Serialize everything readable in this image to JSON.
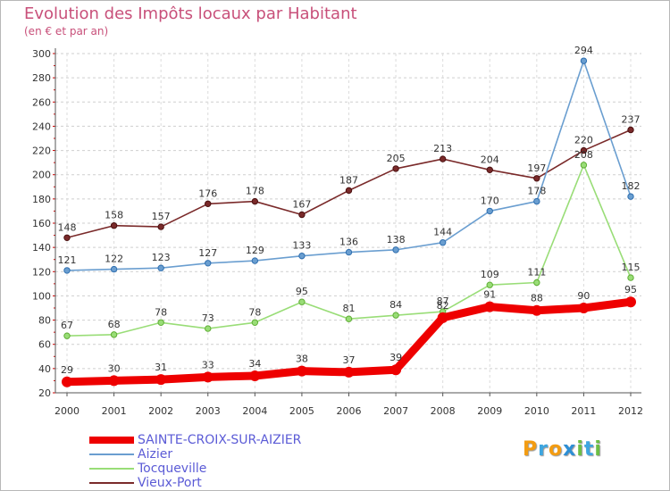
{
  "header": {
    "title": "Evolution des Impôts locaux par Habitant",
    "subtitle": "(en € et par an)"
  },
  "logo": {
    "text": "Proxiti",
    "colors": [
      "#f39c12",
      "#3ea6e0",
      "#f39c12",
      "#2d8fd5",
      "#6dbe45",
      "#3ea6e0",
      "#6dbe45"
    ]
  },
  "chart_data": {
    "type": "line",
    "x": [
      "2000",
      "2001",
      "2002",
      "2003",
      "2004",
      "2005",
      "2006",
      "2007",
      "2008",
      "2009",
      "2010",
      "2011",
      "2012"
    ],
    "ylim": [
      20,
      300
    ],
    "yticks": [
      20,
      40,
      60,
      80,
      100,
      120,
      140,
      160,
      180,
      200,
      220,
      240,
      260,
      280,
      300
    ],
    "grid": "horizontal-dashed",
    "legend_position": "bottom-left",
    "series": [
      {
        "name": "SAINTE-CROIX-SUR-AIZIER",
        "color": "#ee0000",
        "values": [
          29,
          30,
          31,
          33,
          34,
          38,
          37,
          39,
          82,
          91,
          88,
          90,
          95
        ]
      },
      {
        "name": "Aizier",
        "color": "#6a9ed0",
        "values": [
          121,
          122,
          123,
          127,
          129,
          133,
          136,
          138,
          144,
          170,
          178,
          294,
          182
        ]
      },
      {
        "name": "Tocqueville",
        "color": "#99dd77",
        "values": [
          67,
          68,
          78,
          73,
          78,
          95,
          81,
          84,
          87,
          109,
          111,
          208,
          115
        ]
      },
      {
        "name": "Vieux-Port",
        "color": "#7a2a2a",
        "values": [
          148,
          158,
          157,
          176,
          178,
          167,
          187,
          205,
          213,
          204,
          197,
          220,
          237
        ]
      }
    ]
  }
}
